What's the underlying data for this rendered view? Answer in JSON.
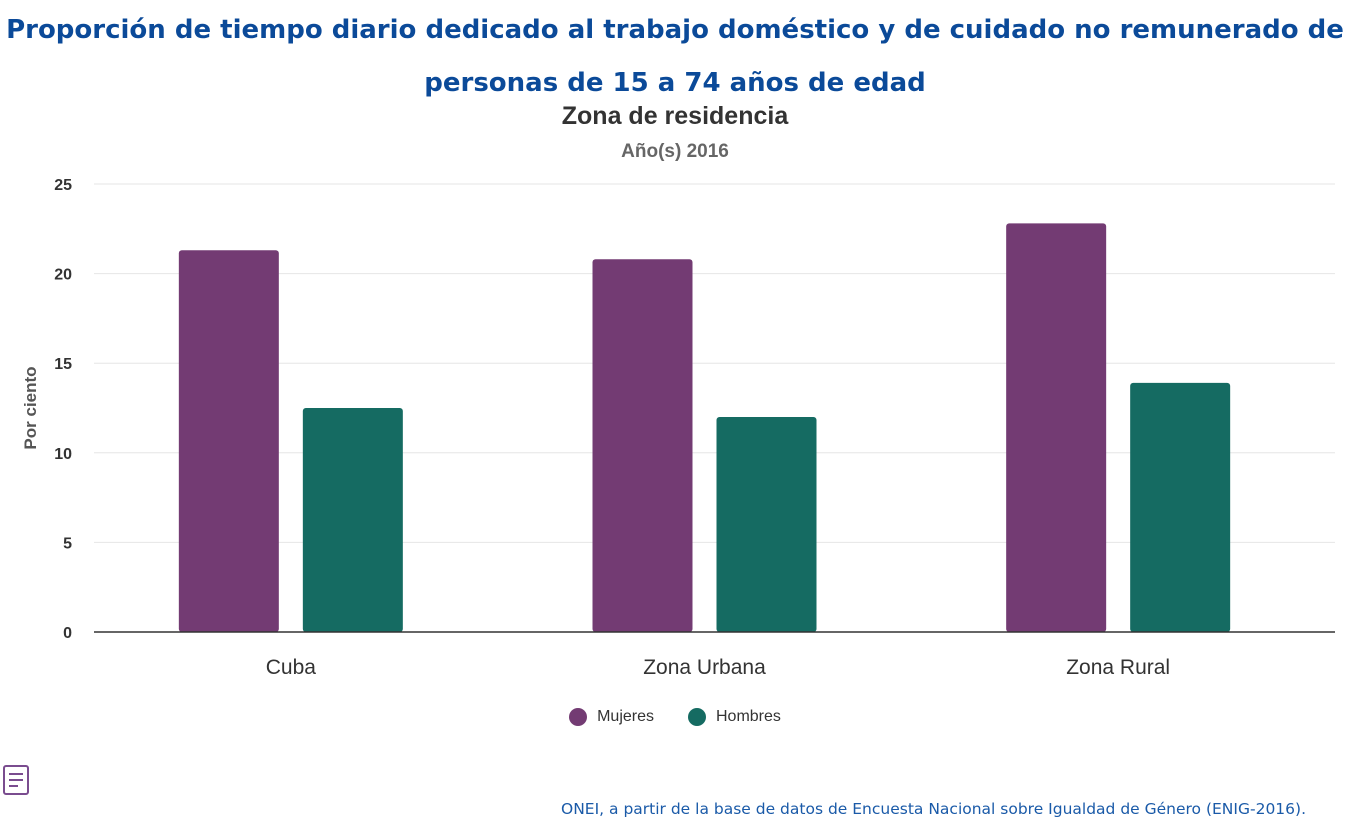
{
  "page": {
    "title": "Proporción de tiempo diario dedicado al trabajo doméstico y de cuidado no remunerado de personas de 15 a 74 años de edad",
    "source": "ONEI, a partir de la base de datos de Encuesta Nacional sobre Igualdad de Género (ENIG-2016).",
    "menu_icon": "menu-icon"
  },
  "chart_data": {
    "type": "bar",
    "title": "Zona de residencia",
    "subtitle": "Año(s) 2016",
    "xlabel": "",
    "ylabel": "Por ciento",
    "categories": [
      "Cuba",
      "Zona Urbana",
      "Zona Rural"
    ],
    "series": [
      {
        "name": "Mujeres",
        "color": "#733b73",
        "values": [
          21.3,
          20.8,
          22.8
        ]
      },
      {
        "name": "Hombres",
        "color": "#156b62",
        "values": [
          12.5,
          12.0,
          13.9
        ]
      }
    ],
    "ylim": [
      0,
      25
    ],
    "yticks": [
      0,
      5,
      10,
      15,
      20,
      25
    ],
    "grid": true,
    "legend_position": "bottom"
  }
}
